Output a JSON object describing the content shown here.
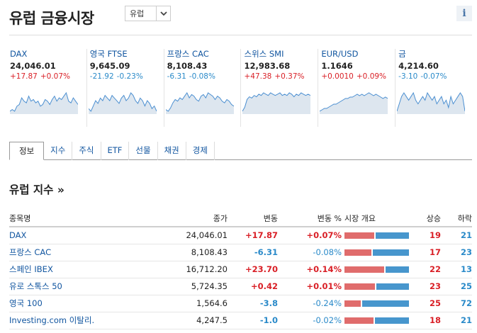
{
  "page": {
    "title": "유럽 금융시장"
  },
  "region_select": {
    "value": "유럽"
  },
  "info_icon": {
    "label": "i"
  },
  "quotes": [
    {
      "name": "DAX",
      "price": "24,046.01",
      "change": "+17.87",
      "change_pct": "+0.07%",
      "dir": "up",
      "spark": [
        6,
        7,
        6,
        9,
        10,
        14,
        12,
        11,
        15,
        12,
        13,
        11,
        12,
        9,
        10,
        13,
        12,
        10,
        13,
        15,
        12,
        14,
        13,
        15,
        17,
        12,
        11,
        14,
        12,
        10
      ]
    },
    {
      "name": "영국 FTSE",
      "price": "9,645.09",
      "change": "-21.92",
      "change_pct": "-0.23%",
      "dir": "down",
      "spark": [
        9,
        8,
        10,
        12,
        11,
        13,
        12,
        14,
        13,
        12,
        14,
        13,
        12,
        11,
        13,
        14,
        12,
        13,
        15,
        14,
        12,
        11,
        13,
        12,
        10,
        12,
        11,
        9,
        10,
        8
      ]
    },
    {
      "name": "프랑스 CAC",
      "price": "8,108.43",
      "change": "-6.31",
      "change_pct": "-0.08%",
      "dir": "down",
      "spark": [
        6,
        5,
        7,
        10,
        12,
        11,
        13,
        12,
        14,
        16,
        13,
        15,
        14,
        12,
        11,
        14,
        15,
        13,
        16,
        15,
        14,
        12,
        14,
        13,
        11,
        10,
        12,
        11,
        9,
        8
      ]
    },
    {
      "name": "스위스 SMI",
      "price": "12,983.68",
      "change": "+47.38",
      "change_pct": "+0.37%",
      "dir": "up",
      "spark": [
        5,
        8,
        14,
        16,
        15,
        17,
        16,
        18,
        17,
        19,
        18,
        17,
        19,
        18,
        17,
        18,
        19,
        17,
        18,
        17,
        19,
        18,
        16,
        18,
        17,
        19,
        18,
        17,
        18,
        17
      ]
    },
    {
      "name": "EUR/USD",
      "price": "1.1646",
      "change": "+0.0010",
      "change_pct": "+0.09%",
      "dir": "up",
      "spark": [
        3,
        4,
        5,
        5,
        6,
        7,
        8,
        8,
        9,
        10,
        11,
        12,
        12,
        13,
        13,
        14,
        15,
        14,
        15,
        14,
        15,
        16,
        15,
        14,
        15,
        14,
        13,
        12,
        13,
        12
      ]
    },
    {
      "name": "금",
      "price": "4,214.60",
      "change": "-3.10",
      "change_pct": "-0.07%",
      "dir": "down",
      "spark": [
        8,
        10,
        12,
        13,
        12,
        11,
        12,
        13,
        11,
        10,
        11,
        12,
        11,
        13,
        12,
        11,
        12,
        10,
        11,
        12,
        10,
        11,
        9,
        12,
        10,
        11,
        12,
        13,
        12,
        8
      ]
    }
  ],
  "tabs": [
    "정보",
    "지수",
    "주식",
    "ETF",
    "선물",
    "채권",
    "경제"
  ],
  "section": {
    "title": "유럽 지수 »"
  },
  "table": {
    "headers": {
      "name": "종목명",
      "price": "종가",
      "change": "변동",
      "change_pct": "변동 %",
      "overview": "시장 개요",
      "up": "상승",
      "down": "하락"
    },
    "rows": [
      {
        "name": "DAX",
        "price": "24,046.01",
        "change": "+17.87",
        "change_pct": "+0.07%",
        "dir": "up",
        "up": "19",
        "down": "21"
      },
      {
        "name": "프랑스 CAC",
        "price": "8,108.43",
        "change": "-6.31",
        "change_pct": "-0.08%",
        "dir": "down",
        "up": "17",
        "down": "23"
      },
      {
        "name": "스페인 IBEX",
        "price": "16,712.20",
        "change": "+23.70",
        "change_pct": "+0.14%",
        "dir": "up",
        "up": "22",
        "down": "13"
      },
      {
        "name": "유로 스톡스 50",
        "price": "5,724.35",
        "change": "+0.42",
        "change_pct": "+0.01%",
        "dir": "up",
        "up": "23",
        "down": "25"
      },
      {
        "name": "영국 100",
        "price": "1,564.6",
        "change": "-3.8",
        "change_pct": "-0.24%",
        "dir": "down",
        "up": "25",
        "down": "72"
      },
      {
        "name": "Investing.com 이탈리.",
        "price": "4,247.5",
        "change": "-1.0",
        "change_pct": "-0.02%",
        "dir": "down",
        "up": "18",
        "down": "21"
      }
    ]
  },
  "colors": {
    "up": "#d91f26",
    "down": "#2a8ac9",
    "link": "#1256a0",
    "spark_fill": "#dde6ef",
    "spark_line": "#4b8fd1",
    "bar_up": "#e06c6c",
    "bar_down": "#4796cd"
  }
}
